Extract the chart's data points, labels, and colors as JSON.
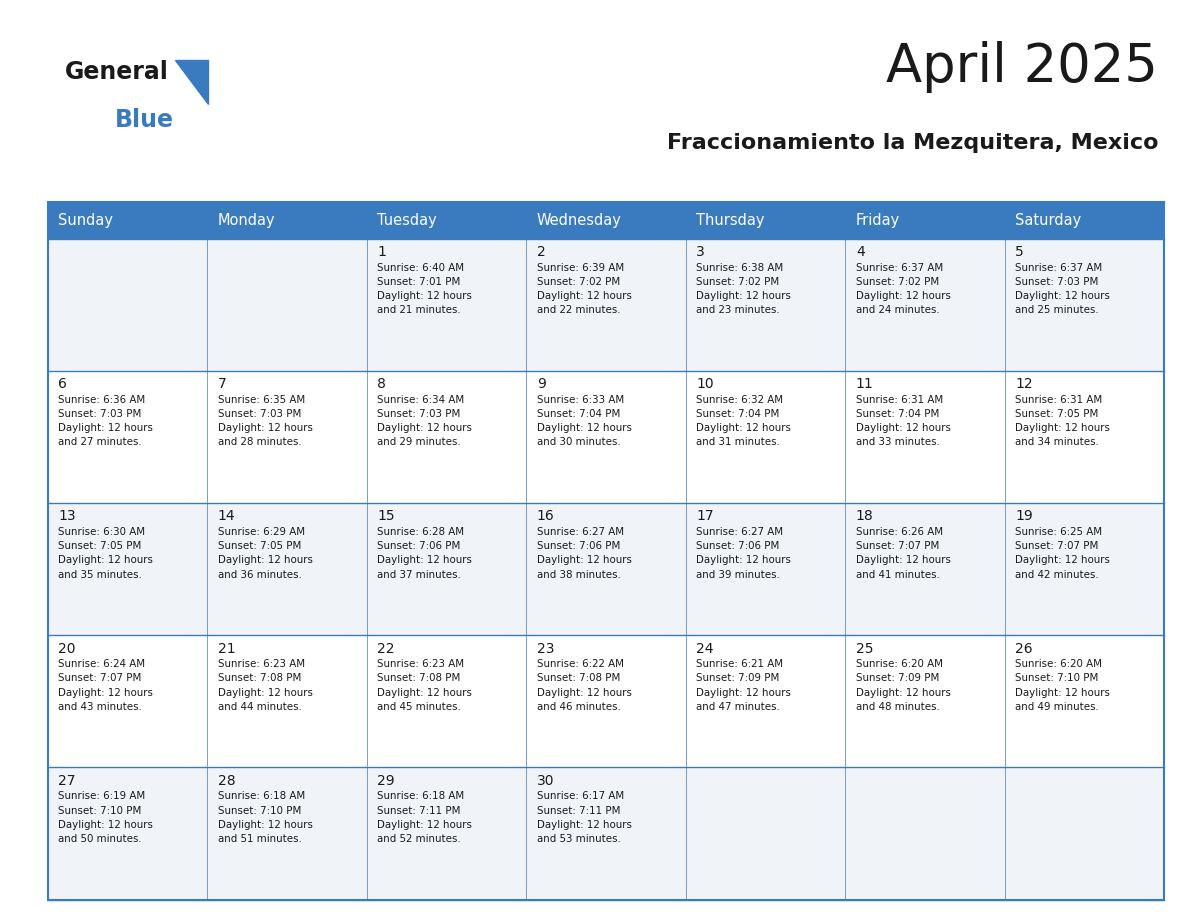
{
  "title": "April 2025",
  "subtitle": "Fraccionamiento la Mezquitera, Mexico",
  "header_bg": "#3a7bbf",
  "header_text": "#ffffff",
  "cell_bg_light": "#f0f4f8",
  "cell_bg_white": "#ffffff",
  "border_color": "#3a7bbf",
  "days_of_week": [
    "Sunday",
    "Monday",
    "Tuesday",
    "Wednesday",
    "Thursday",
    "Friday",
    "Saturday"
  ],
  "calendar_data": [
    [
      {
        "day": "",
        "sunrise": "",
        "sunset": "",
        "daylight": ""
      },
      {
        "day": "",
        "sunrise": "",
        "sunset": "",
        "daylight": ""
      },
      {
        "day": "1",
        "sunrise": "Sunrise: 6:40 AM",
        "sunset": "Sunset: 7:01 PM",
        "daylight": "Daylight: 12 hours\nand 21 minutes."
      },
      {
        "day": "2",
        "sunrise": "Sunrise: 6:39 AM",
        "sunset": "Sunset: 7:02 PM",
        "daylight": "Daylight: 12 hours\nand 22 minutes."
      },
      {
        "day": "3",
        "sunrise": "Sunrise: 6:38 AM",
        "sunset": "Sunset: 7:02 PM",
        "daylight": "Daylight: 12 hours\nand 23 minutes."
      },
      {
        "day": "4",
        "sunrise": "Sunrise: 6:37 AM",
        "sunset": "Sunset: 7:02 PM",
        "daylight": "Daylight: 12 hours\nand 24 minutes."
      },
      {
        "day": "5",
        "sunrise": "Sunrise: 6:37 AM",
        "sunset": "Sunset: 7:03 PM",
        "daylight": "Daylight: 12 hours\nand 25 minutes."
      }
    ],
    [
      {
        "day": "6",
        "sunrise": "Sunrise: 6:36 AM",
        "sunset": "Sunset: 7:03 PM",
        "daylight": "Daylight: 12 hours\nand 27 minutes."
      },
      {
        "day": "7",
        "sunrise": "Sunrise: 6:35 AM",
        "sunset": "Sunset: 7:03 PM",
        "daylight": "Daylight: 12 hours\nand 28 minutes."
      },
      {
        "day": "8",
        "sunrise": "Sunrise: 6:34 AM",
        "sunset": "Sunset: 7:03 PM",
        "daylight": "Daylight: 12 hours\nand 29 minutes."
      },
      {
        "day": "9",
        "sunrise": "Sunrise: 6:33 AM",
        "sunset": "Sunset: 7:04 PM",
        "daylight": "Daylight: 12 hours\nand 30 minutes."
      },
      {
        "day": "10",
        "sunrise": "Sunrise: 6:32 AM",
        "sunset": "Sunset: 7:04 PM",
        "daylight": "Daylight: 12 hours\nand 31 minutes."
      },
      {
        "day": "11",
        "sunrise": "Sunrise: 6:31 AM",
        "sunset": "Sunset: 7:04 PM",
        "daylight": "Daylight: 12 hours\nand 33 minutes."
      },
      {
        "day": "12",
        "sunrise": "Sunrise: 6:31 AM",
        "sunset": "Sunset: 7:05 PM",
        "daylight": "Daylight: 12 hours\nand 34 minutes."
      }
    ],
    [
      {
        "day": "13",
        "sunrise": "Sunrise: 6:30 AM",
        "sunset": "Sunset: 7:05 PM",
        "daylight": "Daylight: 12 hours\nand 35 minutes."
      },
      {
        "day": "14",
        "sunrise": "Sunrise: 6:29 AM",
        "sunset": "Sunset: 7:05 PM",
        "daylight": "Daylight: 12 hours\nand 36 minutes."
      },
      {
        "day": "15",
        "sunrise": "Sunrise: 6:28 AM",
        "sunset": "Sunset: 7:06 PM",
        "daylight": "Daylight: 12 hours\nand 37 minutes."
      },
      {
        "day": "16",
        "sunrise": "Sunrise: 6:27 AM",
        "sunset": "Sunset: 7:06 PM",
        "daylight": "Daylight: 12 hours\nand 38 minutes."
      },
      {
        "day": "17",
        "sunrise": "Sunrise: 6:27 AM",
        "sunset": "Sunset: 7:06 PM",
        "daylight": "Daylight: 12 hours\nand 39 minutes."
      },
      {
        "day": "18",
        "sunrise": "Sunrise: 6:26 AM",
        "sunset": "Sunset: 7:07 PM",
        "daylight": "Daylight: 12 hours\nand 41 minutes."
      },
      {
        "day": "19",
        "sunrise": "Sunrise: 6:25 AM",
        "sunset": "Sunset: 7:07 PM",
        "daylight": "Daylight: 12 hours\nand 42 minutes."
      }
    ],
    [
      {
        "day": "20",
        "sunrise": "Sunrise: 6:24 AM",
        "sunset": "Sunset: 7:07 PM",
        "daylight": "Daylight: 12 hours\nand 43 minutes."
      },
      {
        "day": "21",
        "sunrise": "Sunrise: 6:23 AM",
        "sunset": "Sunset: 7:08 PM",
        "daylight": "Daylight: 12 hours\nand 44 minutes."
      },
      {
        "day": "22",
        "sunrise": "Sunrise: 6:23 AM",
        "sunset": "Sunset: 7:08 PM",
        "daylight": "Daylight: 12 hours\nand 45 minutes."
      },
      {
        "day": "23",
        "sunrise": "Sunrise: 6:22 AM",
        "sunset": "Sunset: 7:08 PM",
        "daylight": "Daylight: 12 hours\nand 46 minutes."
      },
      {
        "day": "24",
        "sunrise": "Sunrise: 6:21 AM",
        "sunset": "Sunset: 7:09 PM",
        "daylight": "Daylight: 12 hours\nand 47 minutes."
      },
      {
        "day": "25",
        "sunrise": "Sunrise: 6:20 AM",
        "sunset": "Sunset: 7:09 PM",
        "daylight": "Daylight: 12 hours\nand 48 minutes."
      },
      {
        "day": "26",
        "sunrise": "Sunrise: 6:20 AM",
        "sunset": "Sunset: 7:10 PM",
        "daylight": "Daylight: 12 hours\nand 49 minutes."
      }
    ],
    [
      {
        "day": "27",
        "sunrise": "Sunrise: 6:19 AM",
        "sunset": "Sunset: 7:10 PM",
        "daylight": "Daylight: 12 hours\nand 50 minutes."
      },
      {
        "day": "28",
        "sunrise": "Sunrise: 6:18 AM",
        "sunset": "Sunset: 7:10 PM",
        "daylight": "Daylight: 12 hours\nand 51 minutes."
      },
      {
        "day": "29",
        "sunrise": "Sunrise: 6:18 AM",
        "sunset": "Sunset: 7:11 PM",
        "daylight": "Daylight: 12 hours\nand 52 minutes."
      },
      {
        "day": "30",
        "sunrise": "Sunrise: 6:17 AM",
        "sunset": "Sunset: 7:11 PM",
        "daylight": "Daylight: 12 hours\nand 53 minutes."
      },
      {
        "day": "",
        "sunrise": "",
        "sunset": "",
        "daylight": ""
      },
      {
        "day": "",
        "sunrise": "",
        "sunset": "",
        "daylight": ""
      },
      {
        "day": "",
        "sunrise": "",
        "sunset": "",
        "daylight": ""
      }
    ]
  ]
}
